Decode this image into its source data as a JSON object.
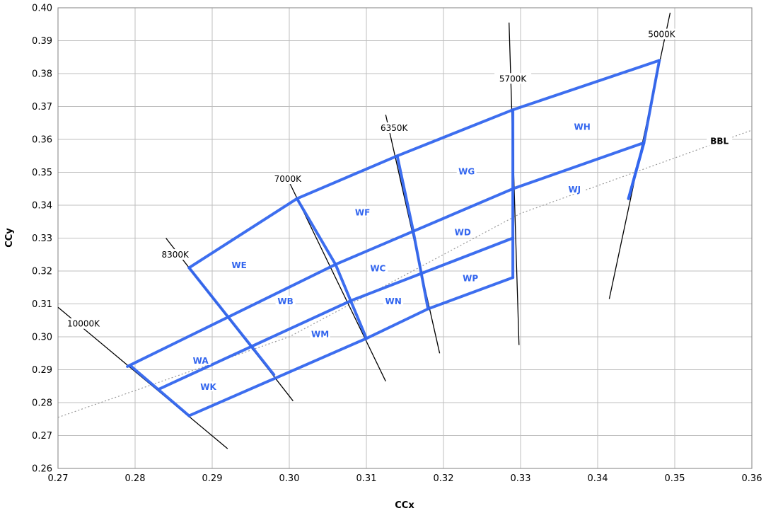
{
  "chart_data": {
    "type": "line",
    "xlabel": "CCx",
    "ylabel": "CCy",
    "xlim": [
      0.27,
      0.36
    ],
    "ylim": [
      0.26,
      0.4
    ],
    "x_ticks": [
      "0.27",
      "0.28",
      "0.29",
      "0.30",
      "0.31",
      "0.32",
      "0.33",
      "0.34",
      "0.35",
      "0.36"
    ],
    "y_ticks": [
      "0.26",
      "0.27",
      "0.28",
      "0.29",
      "0.30",
      "0.31",
      "0.32",
      "0.33",
      "0.34",
      "0.35",
      "0.36",
      "0.37",
      "0.38",
      "0.39",
      "0.40"
    ],
    "grid": true,
    "colors": {
      "bins": "#3366ee",
      "cct_lines": "#000000",
      "bbl": "#999999",
      "grid": "#bfbfbf"
    },
    "bin_lines": [
      [
        [
          0.287,
          0.321
        ],
        [
          0.301,
          0.342
        ],
        [
          0.314,
          0.355
        ],
        [
          0.329,
          0.369
        ],
        [
          0.348,
          0.384
        ]
      ],
      [
        [
          0.279,
          0.291
        ],
        [
          0.306,
          0.322
        ],
        [
          0.329,
          0.345
        ],
        [
          0.346,
          0.359
        ]
      ],
      [
        [
          0.283,
          0.284
        ],
        [
          0.308,
          0.311
        ],
        [
          0.329,
          0.33
        ]
      ],
      [
        [
          0.287,
          0.276
        ],
        [
          0.31,
          0.2995
        ],
        [
          0.318,
          0.3085
        ],
        [
          0.329,
          0.318
        ]
      ],
      [
        [
          0.344,
          0.342
        ],
        [
          0.346,
          0.359
        ],
        [
          0.348,
          0.384
        ]
      ],
      [
        [
          0.2795,
          0.291
        ],
        [
          0.287,
          0.276
        ]
      ],
      [
        [
          0.287,
          0.321
        ],
        [
          0.298,
          0.2885
        ]
      ],
      [
        [
          0.301,
          0.342
        ],
        [
          0.306,
          0.322
        ],
        [
          0.31,
          0.2995
        ]
      ],
      [
        [
          0.314,
          0.355
        ],
        [
          0.316,
          0.333
        ],
        [
          0.318,
          0.3085
        ]
      ],
      [
        [
          0.329,
          0.369
        ],
        [
          0.329,
          0.318
        ]
      ],
      [
        [
          0.346,
          0.359
        ],
        [
          0.344,
          0.342
        ]
      ]
    ],
    "cct_lines": [
      {
        "name": "10000K",
        "points": [
          [
            0.27,
            0.309
          ],
          [
            0.292,
            0.266
          ]
        ]
      },
      {
        "name": "8300K",
        "points": [
          [
            0.284,
            0.33
          ],
          [
            0.3005,
            0.2805
          ]
        ]
      },
      {
        "name": "7000K",
        "points": [
          [
            0.3,
            0.347
          ],
          [
            0.3125,
            0.2865
          ]
        ]
      },
      {
        "name": "6350K",
        "points": [
          [
            0.3125,
            0.3675
          ],
          [
            0.3195,
            0.295
          ]
        ]
      },
      {
        "name": "5700K",
        "points": [
          [
            0.3285,
            0.3955
          ],
          [
            0.3298,
            0.2975
          ]
        ]
      },
      {
        "name": "5000K",
        "points": [
          [
            0.3494,
            0.3985
          ],
          [
            0.3415,
            0.3115
          ]
        ]
      }
    ],
    "bbl": {
      "name": "BBL",
      "points": [
        [
          0.27,
          0.2755
        ],
        [
          0.3,
          0.3
        ],
        [
          0.33,
          0.3375
        ],
        [
          0.36,
          0.3628
        ]
      ]
    },
    "cct_labels": [
      {
        "text": "10000K",
        "x": 0.2733,
        "y": 0.3035
      },
      {
        "text": "8300K",
        "x": 0.2852,
        "y": 0.3245
      },
      {
        "text": "7000K",
        "x": 0.2998,
        "y": 0.3475
      },
      {
        "text": "6350K",
        "x": 0.3136,
        "y": 0.363
      },
      {
        "text": "5700K",
        "x": 0.329,
        "y": 0.378
      },
      {
        "text": "5000K",
        "x": 0.3483,
        "y": 0.3915
      }
    ],
    "bin_labels": [
      {
        "text": "WH",
        "x": 0.338,
        "y": 0.3635
      },
      {
        "text": "WG",
        "x": 0.323,
        "y": 0.35
      },
      {
        "text": "WJ",
        "x": 0.337,
        "y": 0.3445
      },
      {
        "text": "WF",
        "x": 0.3095,
        "y": 0.3375
      },
      {
        "text": "WD",
        "x": 0.3225,
        "y": 0.3315
      },
      {
        "text": "WE",
        "x": 0.2935,
        "y": 0.3215
      },
      {
        "text": "WC",
        "x": 0.3115,
        "y": 0.3205
      },
      {
        "text": "WP",
        "x": 0.3235,
        "y": 0.3175
      },
      {
        "text": "WB",
        "x": 0.2995,
        "y": 0.3105
      },
      {
        "text": "WN",
        "x": 0.3135,
        "y": 0.3105
      },
      {
        "text": "WM",
        "x": 0.304,
        "y": 0.3005
      },
      {
        "text": "WA",
        "x": 0.2885,
        "y": 0.2925
      },
      {
        "text": "WK",
        "x": 0.2895,
        "y": 0.2845
      }
    ],
    "bbl_label": {
      "text": "BBL",
      "x": 0.3558,
      "y": 0.3592
    }
  }
}
